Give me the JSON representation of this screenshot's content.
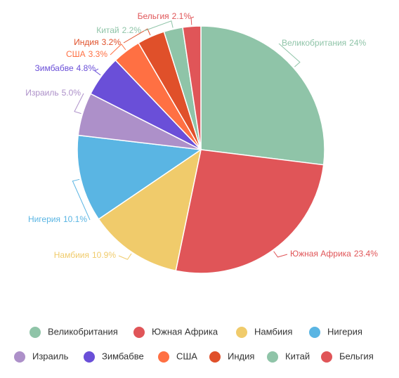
{
  "chart_data": {
    "type": "pie",
    "categories": [
      "Великобритания",
      "Южная Африка",
      "Намбиия",
      "Нигерия",
      "Израиль",
      "Зимбабве",
      "США",
      "Индия",
      "Китай",
      "Бельгия"
    ],
    "values": [
      24,
      23.4,
      10.9,
      10.1,
      5.0,
      4.8,
      3.3,
      3.2,
      2.2,
      2.1
    ],
    "value_labels": [
      "24%",
      "23.4%",
      "10.9%",
      "10.1%",
      "5.0%",
      "4.8%",
      "3.3%",
      "3.2%",
      "2.2%",
      "2.1%"
    ],
    "colors": [
      "#8fc4a8",
      "#e05558",
      "#f0cb6b",
      "#5ab5e3",
      "#ad90c9",
      "#6a4fd8",
      "#ff7043",
      "#e0502a",
      "#8fc4a8",
      "#e05558"
    ],
    "legend": "bottom"
  }
}
